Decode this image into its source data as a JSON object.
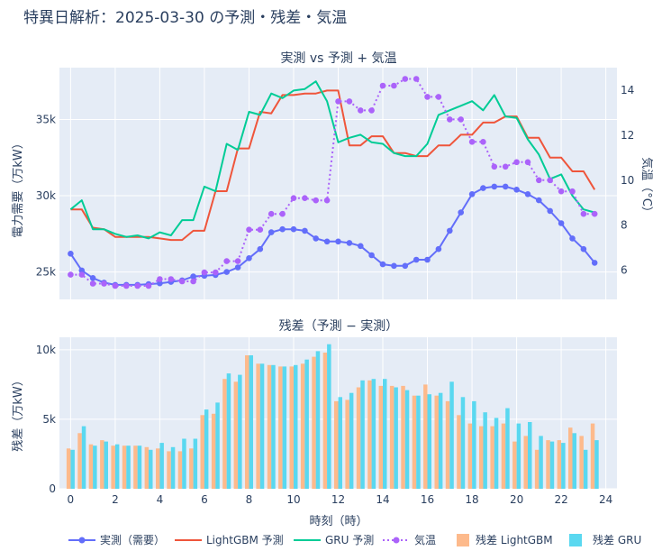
{
  "page": {
    "title": "特異日解析：2025-03-30 の予測・残差・気温"
  },
  "chart_data": [
    {
      "type": "line",
      "title": "実測 vs 予測 + 気温",
      "xlabel": "",
      "ylabel": "電力需要（万kW）",
      "y2label": "気温（°C）",
      "xlim": [
        -0.5,
        24.5
      ],
      "ylim": [
        23200,
        38400
      ],
      "y2lim": [
        4.7,
        15.0
      ],
      "x_ticks": [
        0,
        2,
        4,
        6,
        8,
        10,
        12,
        14,
        16,
        18,
        20,
        22,
        24
      ],
      "y_ticks": [
        {
          "value": 25000,
          "label": "25k"
        },
        {
          "value": 30000,
          "label": "30k"
        },
        {
          "value": 35000,
          "label": "35k"
        }
      ],
      "y2_ticks": [
        {
          "value": 6,
          "label": "6"
        },
        {
          "value": 8,
          "label": "8"
        },
        {
          "value": 10,
          "label": "10"
        },
        {
          "value": 12,
          "label": "12"
        },
        {
          "value": 14,
          "label": "14"
        }
      ],
      "grid": true,
      "x": [
        0,
        0.5,
        1,
        1.5,
        2,
        2.5,
        3,
        3.5,
        4,
        4.5,
        5,
        5.5,
        6,
        6.5,
        7,
        7.5,
        8,
        8.5,
        9,
        9.5,
        10,
        10.5,
        11,
        11.5,
        12,
        12.5,
        13,
        13.5,
        14,
        14.5,
        15,
        15.5,
        16,
        16.5,
        17,
        17.5,
        18,
        18.5,
        19,
        19.5,
        20,
        20.5,
        21,
        21.5,
        22,
        22.5,
        23,
        23.5
      ],
      "series": [
        {
          "name": "実測（需要）",
          "axis": "y",
          "color": "#636efa",
          "dash": "solid",
          "markers": true,
          "values": [
            26200,
            25100,
            24600,
            24300,
            24150,
            24150,
            24150,
            24200,
            24250,
            24350,
            24450,
            24700,
            24750,
            24800,
            25000,
            25300,
            25900,
            26500,
            27600,
            27800,
            27800,
            27700,
            27200,
            27000,
            27000,
            26900,
            26700,
            26100,
            25500,
            25400,
            25400,
            25800,
            25800,
            26500,
            27700,
            28900,
            30100,
            30500,
            30600,
            30600,
            30400,
            30100,
            29700,
            29000,
            28200,
            27200,
            26500,
            25600
          ]
        },
        {
          "name": "LightGBM 予測",
          "axis": "y",
          "color": "#ef553b",
          "dash": "solid",
          "markers": false,
          "values": [
            29100,
            29100,
            27900,
            27800,
            27300,
            27300,
            27300,
            27300,
            27200,
            27100,
            27100,
            27700,
            27700,
            30300,
            30300,
            33100,
            33100,
            35500,
            35400,
            36600,
            36600,
            36700,
            36700,
            36900,
            36900,
            33300,
            33300,
            33900,
            33900,
            32800,
            32800,
            32600,
            32600,
            33300,
            33300,
            34000,
            34000,
            34800,
            34800,
            35200,
            35200,
            33800,
            33800,
            32500,
            32500,
            31600,
            31600,
            30400
          ]
        },
        {
          "name": "GRU 予測",
          "axis": "y",
          "color": "#00cc96",
          "dash": "solid",
          "markers": false,
          "values": [
            29100,
            29700,
            27800,
            27800,
            27500,
            27300,
            27400,
            27200,
            27600,
            27400,
            28400,
            28400,
            30600,
            30300,
            33400,
            33000,
            35500,
            35300,
            36700,
            36400,
            36900,
            37000,
            37500,
            36200,
            33500,
            33800,
            34000,
            33500,
            33400,
            32800,
            32600,
            32600,
            33400,
            35300,
            35600,
            35900,
            36200,
            35600,
            36600,
            35200,
            35100,
            33700,
            32700,
            31100,
            31400,
            30000,
            29100,
            28900
          ]
        },
        {
          "name": "気温",
          "axis": "y2",
          "color": "#ab63fa",
          "dash": "dot",
          "markers": true,
          "values": [
            5.8,
            5.8,
            5.4,
            5.4,
            5.3,
            5.3,
            5.3,
            5.3,
            5.6,
            5.6,
            5.5,
            5.5,
            5.9,
            5.9,
            6.4,
            6.4,
            7.8,
            7.8,
            8.5,
            8.5,
            9.2,
            9.2,
            9.1,
            9.1,
            13.5,
            13.5,
            13.1,
            13.1,
            14.2,
            14.2,
            14.5,
            14.5,
            13.7,
            13.7,
            12.7,
            12.7,
            11.7,
            11.7,
            10.6,
            10.6,
            10.8,
            10.8,
            10.0,
            10.0,
            9.5,
            9.5,
            8.5,
            8.5
          ]
        }
      ]
    },
    {
      "type": "bar",
      "title": "残差（予測 − 実測）",
      "xlabel": "時刻（時）",
      "ylabel": "残差（万kW）",
      "xlim": [
        -0.5,
        24.5
      ],
      "ylim": [
        0,
        10900
      ],
      "x_ticks": [
        0,
        2,
        4,
        6,
        8,
        10,
        12,
        14,
        16,
        18,
        20,
        22,
        24
      ],
      "y_ticks": [
        {
          "value": 0,
          "label": "0"
        },
        {
          "value": 5000,
          "label": "5k"
        },
        {
          "value": 10000,
          "label": "10k"
        }
      ],
      "grid": true,
      "x": [
        0,
        0.5,
        1,
        1.5,
        2,
        2.5,
        3,
        3.5,
        4,
        4.5,
        5,
        5.5,
        6,
        6.5,
        7,
        7.5,
        8,
        8.5,
        9,
        9.5,
        10,
        10.5,
        11,
        11.5,
        12,
        12.5,
        13,
        13.5,
        14,
        14.5,
        15,
        15.5,
        16,
        16.5,
        17,
        17.5,
        18,
        18.5,
        19,
        19.5,
        20,
        20.5,
        21,
        21.5,
        22,
        22.5,
        23,
        23.5
      ],
      "series": [
        {
          "name": "残差 LightGBM",
          "color": "#fdba8c",
          "values": [
            2900,
            4000,
            3200,
            3500,
            3100,
            3100,
            3100,
            3000,
            2900,
            2700,
            2700,
            2900,
            5300,
            5400,
            7900,
            7700,
            9600,
            9000,
            8900,
            8800,
            8800,
            9000,
            9500,
            9800,
            6300,
            6400,
            7300,
            7800,
            7400,
            7400,
            7400,
            6700,
            7500,
            6700,
            6300,
            5300,
            4700,
            4500,
            4500,
            4700,
            3400,
            3800,
            2800,
            3500,
            3500,
            4400,
            3800,
            4700
          ]
        },
        {
          "name": "残差 GRU",
          "color": "#5ad8f0",
          "values": [
            2800,
            4500,
            3100,
            3400,
            3200,
            3100,
            3100,
            2800,
            3300,
            3000,
            3600,
            3600,
            5700,
            6200,
            8300,
            8200,
            9600,
            9000,
            8900,
            8800,
            8900,
            9300,
            9900,
            10400,
            6600,
            6900,
            7800,
            7900,
            7900,
            7300,
            7100,
            6700,
            6800,
            6900,
            7700,
            6600,
            6300,
            5500,
            5100,
            5800,
            4700,
            4800,
            3800,
            3400,
            3300,
            4000,
            2800,
            3500
          ]
        }
      ]
    }
  ]
}
